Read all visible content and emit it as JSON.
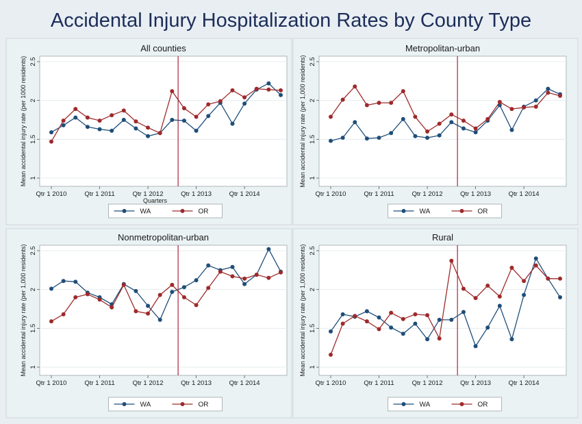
{
  "title": "Accidental Injury Hospitalization Rates by County Type",
  "colors": {
    "WA": "#1f4e79",
    "OR": "#9e2a2b",
    "divider": "#b0334a"
  },
  "chart_data": [
    {
      "type": "line",
      "title": "All counties",
      "xlabel": "Quarters",
      "ylabel": "Mean accidental injury rate (per 1000 residents)",
      "x_tick_labels": [
        "Qtr 1 2010",
        "Qtr 1 2011",
        "Qtr 1 2012",
        "Qtr 1 2013",
        "Qtr 1 2014"
      ],
      "y_ticks": [
        "1",
        "1.5",
        "2",
        "2.5"
      ],
      "ylim": [
        1,
        2.5
      ],
      "intervention_quarter": 10.5,
      "legend": [
        "WA",
        "OR"
      ],
      "series": [
        {
          "name": "WA",
          "values": [
            1.59,
            1.68,
            1.78,
            1.66,
            1.63,
            1.61,
            1.75,
            1.64,
            1.54,
            1.58,
            1.75,
            1.74,
            1.61,
            1.8,
            1.97,
            1.7,
            1.96,
            2.14,
            2.22,
            2.07
          ]
        },
        {
          "name": "OR",
          "values": [
            1.47,
            1.74,
            1.89,
            1.78,
            1.74,
            1.81,
            1.87,
            1.73,
            1.65,
            1.58,
            2.12,
            1.9,
            1.79,
            1.95,
            1.99,
            2.13,
            2.04,
            2.15,
            2.14,
            2.13
          ]
        }
      ]
    },
    {
      "type": "line",
      "title": "Metropolitan-urban",
      "xlabel": "",
      "ylabel": "Mean accidental injury rate (per 1,000 residents)",
      "x_tick_labels": [
        "Qtr 1 2010",
        "Qtr 1 2011",
        "Qtr 1 2012",
        "Qtr 1 2013",
        "Qtr 1 2014"
      ],
      "y_ticks": [
        "1",
        "1.5",
        "2",
        "2.5"
      ],
      "ylim": [
        1,
        2.5
      ],
      "intervention_quarter": 10.5,
      "legend": [
        "WA",
        "OR"
      ],
      "series": [
        {
          "name": "WA",
          "values": [
            1.48,
            1.52,
            1.72,
            1.51,
            1.52,
            1.58,
            1.76,
            1.54,
            1.52,
            1.55,
            1.72,
            1.64,
            1.59,
            1.74,
            1.94,
            1.62,
            1.92,
            2.0,
            2.15,
            2.08
          ]
        },
        {
          "name": "OR",
          "values": [
            1.79,
            2.01,
            2.18,
            1.94,
            1.97,
            1.97,
            2.12,
            1.79,
            1.6,
            1.7,
            1.82,
            1.74,
            1.64,
            1.76,
            1.98,
            1.89,
            1.91,
            1.92,
            2.1,
            2.06
          ]
        }
      ]
    },
    {
      "type": "line",
      "title": "Nonmetropolitan-urban",
      "xlabel": "",
      "ylabel": "Mean accidental injury rate (per 1,000 residents)",
      "x_tick_labels": [
        "Qtr 1 2010",
        "Qtr 1 2011",
        "Qtr 1 2012",
        "Qtr 1 2013",
        "Qtr 1 2014"
      ],
      "y_ticks": [
        "1",
        "1.5",
        "2",
        "2.5"
      ],
      "ylim": [
        1,
        2.5
      ],
      "intervention_quarter": 10.5,
      "legend": [
        "WA",
        "OR"
      ],
      "series": [
        {
          "name": "WA",
          "values": [
            2.01,
            2.11,
            2.1,
            1.96,
            1.9,
            1.81,
            2.07,
            1.98,
            1.79,
            1.61,
            1.97,
            2.03,
            2.12,
            2.31,
            2.25,
            2.29,
            2.07,
            2.19,
            2.52,
            2.23
          ]
        },
        {
          "name": "OR",
          "values": [
            1.59,
            1.68,
            1.9,
            1.94,
            1.87,
            1.77,
            2.06,
            1.72,
            1.69,
            1.93,
            2.06,
            1.9,
            1.8,
            2.02,
            2.23,
            2.17,
            2.14,
            2.19,
            2.15,
            2.22
          ]
        }
      ]
    },
    {
      "type": "line",
      "title": "Rural",
      "xlabel": "",
      "ylabel": "Mean accidental injury rate (per 1,000 residents)",
      "x_tick_labels": [
        "Qtr 1 2010",
        "Qtr 1 2011",
        "Qtr 1 2012",
        "Qtr 1 2013",
        "Qtr 1 2014"
      ],
      "y_ticks": [
        "1",
        "1.5",
        "2",
        "2.5"
      ],
      "ylim": [
        1,
        2.5
      ],
      "intervention_quarter": 10.5,
      "legend": [
        "WA",
        "OR"
      ],
      "series": [
        {
          "name": "WA",
          "values": [
            1.46,
            1.68,
            1.65,
            1.72,
            1.64,
            1.51,
            1.43,
            1.56,
            1.36,
            1.61,
            1.61,
            1.71,
            1.27,
            1.51,
            1.79,
            1.36,
            1.93,
            2.4,
            2.14,
            1.9
          ]
        },
        {
          "name": "OR",
          "values": [
            1.16,
            1.56,
            1.66,
            1.59,
            1.49,
            1.7,
            1.62,
            1.68,
            1.67,
            1.37,
            2.37,
            2.01,
            1.89,
            2.05,
            1.91,
            2.28,
            2.11,
            2.31,
            2.14,
            2.14
          ]
        }
      ]
    }
  ]
}
